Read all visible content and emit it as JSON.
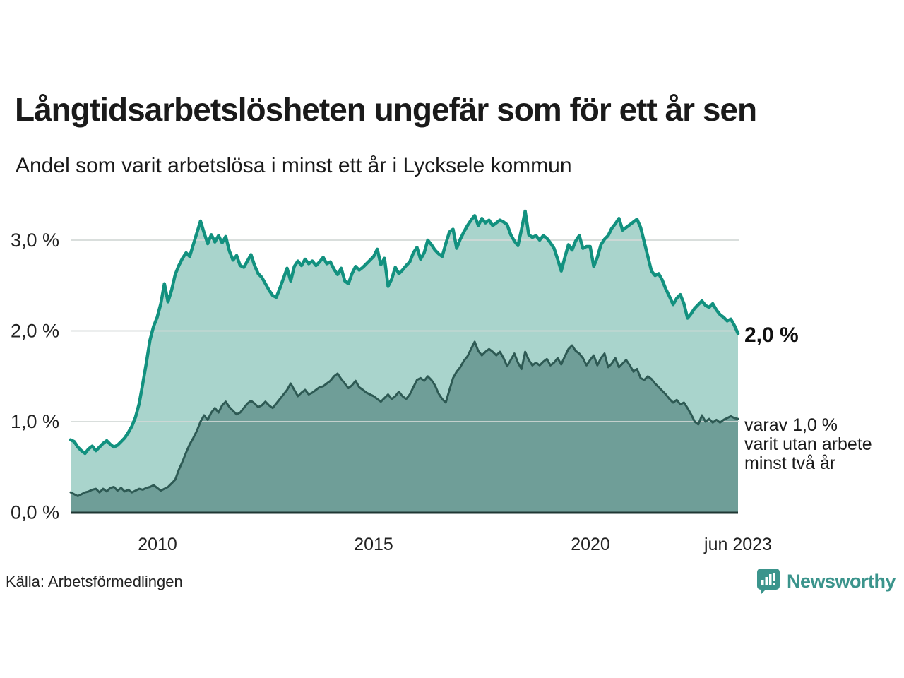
{
  "header": {
    "title": "Långtidsarbetslösheten ungefär som för ett år sen",
    "subtitle": "Andel som varit arbetslösa i minst ett år i Lycksele kommun"
  },
  "footer": {
    "source": "Källa: Arbetsförmedlingen",
    "brand_name": "Newsworthy"
  },
  "colors": {
    "title_text": "#1a1a1a",
    "series_long_line": "#12917f",
    "series_long_fill": "#a9d4cc",
    "series_verylong_line": "#2e5a54",
    "series_verylong_fill": "#6f9e98",
    "gridline": "#d2d8d6",
    "baseline": "#1f3733",
    "axis_text": "#222222",
    "brand_teal": "#3b948c"
  },
  "annotations": {
    "latest_total": "2,0 %",
    "secondary": "varav 1,0 %\nvarit utan arbete\nminst två år"
  },
  "chart_data": {
    "type": "area",
    "title": "Långtidsarbetslösheten ungefär som för ett år sen",
    "subtitle": "Andel som varit arbetslösa i minst ett år i Lycksele kommun",
    "unit": "%",
    "x_start_year": 2008.0,
    "x_step_years": 0.0833333,
    "x_end_label": "jun 2023",
    "ylim": [
      0,
      3.45
    ],
    "grid": true,
    "y_ticks": [
      {
        "v": 0.0,
        "label": "0,0 %"
      },
      {
        "v": 1.0,
        "label": "1,0 %"
      },
      {
        "v": 2.0,
        "label": "2,0 %"
      },
      {
        "v": 3.0,
        "label": "3,0 %"
      }
    ],
    "x_ticks": [
      {
        "year": 2010.0,
        "label": "2010"
      },
      {
        "year": 2015.0,
        "label": "2015"
      },
      {
        "year": 2020.0,
        "label": "2020"
      },
      {
        "year": 2023.4167,
        "label": "jun 2023"
      }
    ],
    "series": [
      {
        "name": "Arbetslösa minst ett år",
        "end_label": "2,0 %",
        "line_color": "#12917f",
        "fill_color": "#a9d4cc",
        "line_width": 4.5,
        "values": [
          0.8,
          0.78,
          0.72,
          0.68,
          0.65,
          0.7,
          0.73,
          0.68,
          0.72,
          0.76,
          0.79,
          0.75,
          0.72,
          0.74,
          0.78,
          0.82,
          0.88,
          0.95,
          1.05,
          1.2,
          1.42,
          1.65,
          1.9,
          2.05,
          2.15,
          2.3,
          2.52,
          2.32,
          2.45,
          2.62,
          2.72,
          2.8,
          2.86,
          2.82,
          2.95,
          3.08,
          3.21,
          3.08,
          2.96,
          3.06,
          2.98,
          3.05,
          2.97,
          3.04,
          2.88,
          2.78,
          2.83,
          2.72,
          2.7,
          2.77,
          2.84,
          2.72,
          2.63,
          2.59,
          2.52,
          2.45,
          2.39,
          2.37,
          2.47,
          2.58,
          2.69,
          2.55,
          2.71,
          2.77,
          2.72,
          2.79,
          2.74,
          2.77,
          2.72,
          2.76,
          2.81,
          2.74,
          2.76,
          2.68,
          2.62,
          2.69,
          2.55,
          2.52,
          2.63,
          2.71,
          2.67,
          2.7,
          2.74,
          2.78,
          2.82,
          2.9,
          2.73,
          2.8,
          2.49,
          2.57,
          2.7,
          2.63,
          2.67,
          2.72,
          2.76,
          2.86,
          2.92,
          2.79,
          2.86,
          3.0,
          2.95,
          2.89,
          2.85,
          2.82,
          2.96,
          3.09,
          3.12,
          2.91,
          3.01,
          3.09,
          3.16,
          3.22,
          3.27,
          3.16,
          3.24,
          3.19,
          3.22,
          3.16,
          3.19,
          3.22,
          3.2,
          3.17,
          3.06,
          2.99,
          2.94,
          3.12,
          3.32,
          3.06,
          3.03,
          3.05,
          3.0,
          3.05,
          3.02,
          2.97,
          2.91,
          2.79,
          2.66,
          2.81,
          2.95,
          2.89,
          2.99,
          3.05,
          2.91,
          2.93,
          2.93,
          2.71,
          2.81,
          2.95,
          3.01,
          3.05,
          3.13,
          3.18,
          3.24,
          3.11,
          3.14,
          3.17,
          3.2,
          3.23,
          3.14,
          2.98,
          2.82,
          2.66,
          2.61,
          2.63,
          2.56,
          2.46,
          2.38,
          2.29,
          2.36,
          2.4,
          2.3,
          2.14,
          2.19,
          2.25,
          2.29,
          2.33,
          2.28,
          2.26,
          2.3,
          2.23,
          2.18,
          2.15,
          2.11,
          2.13,
          2.06,
          1.97
        ]
      },
      {
        "name": "varav utan arbete minst två år",
        "end_label": "varav 1,0 % varit utan arbete minst två år",
        "line_color": "#2e5a54",
        "fill_color": "#6f9e98",
        "line_width": 3,
        "values": [
          0.22,
          0.2,
          0.18,
          0.2,
          0.22,
          0.23,
          0.25,
          0.26,
          0.22,
          0.26,
          0.23,
          0.27,
          0.28,
          0.24,
          0.27,
          0.23,
          0.25,
          0.22,
          0.24,
          0.26,
          0.25,
          0.27,
          0.28,
          0.3,
          0.27,
          0.24,
          0.26,
          0.28,
          0.32,
          0.36,
          0.47,
          0.56,
          0.66,
          0.75,
          0.82,
          0.9,
          1.0,
          1.07,
          1.02,
          1.1,
          1.15,
          1.1,
          1.18,
          1.22,
          1.16,
          1.12,
          1.08,
          1.1,
          1.15,
          1.2,
          1.23,
          1.2,
          1.16,
          1.18,
          1.22,
          1.18,
          1.15,
          1.2,
          1.25,
          1.3,
          1.35,
          1.42,
          1.35,
          1.28,
          1.32,
          1.35,
          1.3,
          1.32,
          1.35,
          1.38,
          1.39,
          1.42,
          1.45,
          1.5,
          1.53,
          1.47,
          1.42,
          1.37,
          1.4,
          1.45,
          1.38,
          1.35,
          1.32,
          1.3,
          1.28,
          1.25,
          1.22,
          1.26,
          1.3,
          1.25,
          1.28,
          1.33,
          1.28,
          1.25,
          1.3,
          1.38,
          1.46,
          1.48,
          1.45,
          1.5,
          1.46,
          1.4,
          1.31,
          1.25,
          1.21,
          1.35,
          1.48,
          1.55,
          1.6,
          1.67,
          1.72,
          1.8,
          1.88,
          1.78,
          1.73,
          1.77,
          1.8,
          1.77,
          1.73,
          1.77,
          1.7,
          1.61,
          1.68,
          1.75,
          1.65,
          1.58,
          1.77,
          1.68,
          1.62,
          1.65,
          1.62,
          1.66,
          1.69,
          1.62,
          1.65,
          1.7,
          1.63,
          1.72,
          1.8,
          1.84,
          1.78,
          1.75,
          1.7,
          1.62,
          1.68,
          1.73,
          1.62,
          1.7,
          1.75,
          1.6,
          1.64,
          1.7,
          1.6,
          1.64,
          1.68,
          1.62,
          1.55,
          1.58,
          1.48,
          1.46,
          1.5,
          1.47,
          1.42,
          1.38,
          1.34,
          1.3,
          1.25,
          1.21,
          1.24,
          1.19,
          1.21,
          1.15,
          1.08,
          1.0,
          0.97,
          1.07,
          1.0,
          1.03,
          0.99,
          1.02,
          0.99,
          1.02,
          1.04,
          1.06,
          1.04,
          1.03
        ]
      }
    ]
  }
}
